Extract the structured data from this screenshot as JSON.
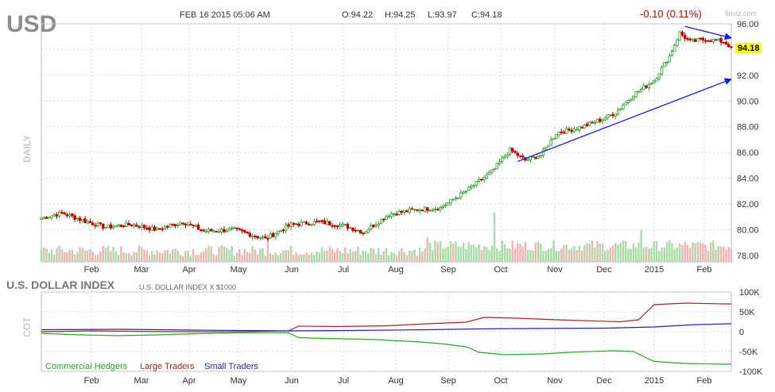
{
  "header": {
    "symbol": "USD",
    "date": "FEB 16 2015 05:06 AM",
    "open": "O:94.22",
    "high": "H:94.25",
    "low": "L:93.97",
    "close": "C:94.18",
    "change": "-0.10 (0.11%)",
    "watermark": "finviz.com",
    "period_label": "DAILY"
  },
  "colors": {
    "up": "#2ca02c",
    "down": "#c00000",
    "change_text": "#cc0000",
    "price_badge": "#ffff00",
    "trendline": "#1020e0",
    "commercial": "#22aa22",
    "large": "#aa2222",
    "small": "#2222aa"
  },
  "chart_data": [
    {
      "type": "candlestick",
      "title": "USD",
      "ylabel": "DAILY",
      "ylim": [
        77.5,
        96.0
      ],
      "yticks": [
        "96.00",
        "94.00",
        "92.00",
        "90.00",
        "88.00",
        "86.00",
        "84.00",
        "82.00",
        "80.00",
        "78.00"
      ],
      "xticks": [
        "Feb",
        "Mar",
        "Apr",
        "May",
        "Jun",
        "Jul",
        "Aug",
        "Sep",
        "Oct",
        "Nov",
        "Dec",
        "2015",
        "Feb"
      ],
      "last_price": "94.18",
      "price_path": [
        [
          0,
          80.9
        ],
        [
          8,
          81.3
        ],
        [
          18,
          80.6
        ],
        [
          25,
          80.2
        ],
        [
          35,
          80.4
        ],
        [
          45,
          80.0
        ],
        [
          55,
          80.6
        ],
        [
          63,
          79.9
        ],
        [
          75,
          80.0
        ],
        [
          87,
          79.3
        ],
        [
          97,
          80.4
        ],
        [
          108,
          80.6
        ],
        [
          118,
          80.3
        ],
        [
          125,
          79.8
        ],
        [
          135,
          81.2
        ],
        [
          147,
          81.6
        ],
        [
          155,
          81.7
        ],
        [
          165,
          83.0
        ],
        [
          175,
          84.5
        ],
        [
          182,
          86.2
        ],
        [
          188,
          85.4
        ],
        [
          194,
          85.8
        ],
        [
          200,
          87.5
        ],
        [
          210,
          88.0
        ],
        [
          218,
          88.6
        ],
        [
          223,
          89.1
        ],
        [
          230,
          90.5
        ],
        [
          238,
          91.6
        ],
        [
          244,
          93.5
        ],
        [
          248,
          95.3
        ],
        [
          252,
          94.6
        ],
        [
          258,
          94.8
        ],
        [
          265,
          94.6
        ],
        [
          268,
          94.18
        ]
      ],
      "volume_spikes": [
        [
          176,
          1.0
        ],
        [
          233,
          0.65
        ],
        [
          88,
          0.55
        ],
        [
          150,
          0.5
        ]
      ],
      "trendlines": [
        {
          "from": [
            185,
            85.3
          ],
          "to": [
            268,
            91.7
          ]
        },
        {
          "from": [
            250,
            95.8
          ],
          "to": [
            268,
            94.9
          ]
        }
      ]
    },
    {
      "type": "line",
      "title": "U.S. DOLLAR INDEX",
      "subtitle": "U.S. DOLLAR INDEX X $1000",
      "ylabel": "COT",
      "ylim": [
        -100000,
        100000
      ],
      "yticks": [
        "100K",
        "50K",
        "0",
        "-50K",
        "-100K"
      ],
      "xticks": [
        "Feb",
        "Mar",
        "Apr",
        "May",
        "Jun",
        "Jul",
        "Aug",
        "Sep",
        "Oct",
        "Nov",
        "Dec",
        "2015",
        "Feb"
      ],
      "series": [
        {
          "name": "Commercial Hedgers",
          "points": [
            [
              0,
              -4000
            ],
            [
              15,
              -8000
            ],
            [
              30,
              -10000
            ],
            [
              45,
              -8000
            ],
            [
              60,
              -5000
            ],
            [
              75,
              -3000
            ],
            [
              96,
              -3000
            ],
            [
              100,
              -15000
            ],
            [
              110,
              -17000
            ],
            [
              130,
              -20000
            ],
            [
              145,
              -25000
            ],
            [
              155,
              -30000
            ],
            [
              165,
              -38000
            ],
            [
              170,
              -52000
            ],
            [
              180,
              -58000
            ],
            [
              195,
              -56000
            ],
            [
              205,
              -52000
            ],
            [
              222,
              -48000
            ],
            [
              230,
              -50000
            ],
            [
              238,
              -75000
            ],
            [
              250,
              -80000
            ],
            [
              265,
              -82000
            ],
            [
              268,
              -82000
            ]
          ]
        },
        {
          "name": "Large Traders",
          "points": [
            [
              0,
              0
            ],
            [
              20,
              2000
            ],
            [
              50,
              0
            ],
            [
              75,
              0
            ],
            [
              96,
              2000
            ],
            [
              100,
              14000
            ],
            [
              115,
              13000
            ],
            [
              135,
              15000
            ],
            [
              150,
              20000
            ],
            [
              165,
              24000
            ],
            [
              172,
              36000
            ],
            [
              185,
              34000
            ],
            [
              200,
              30000
            ],
            [
              225,
              25000
            ],
            [
              232,
              30000
            ],
            [
              238,
              68000
            ],
            [
              250,
              72000
            ],
            [
              265,
              70000
            ],
            [
              268,
              70000
            ]
          ]
        },
        {
          "name": "Small Traders",
          "points": [
            [
              0,
              5000
            ],
            [
              30,
              6000
            ],
            [
              60,
              4000
            ],
            [
              96,
              2000
            ],
            [
              120,
              3000
            ],
            [
              150,
              5000
            ],
            [
              170,
              7000
            ],
            [
              190,
              8000
            ],
            [
              220,
              9000
            ],
            [
              238,
              12000
            ],
            [
              255,
              18000
            ],
            [
              268,
              20000
            ]
          ]
        }
      ]
    }
  ]
}
